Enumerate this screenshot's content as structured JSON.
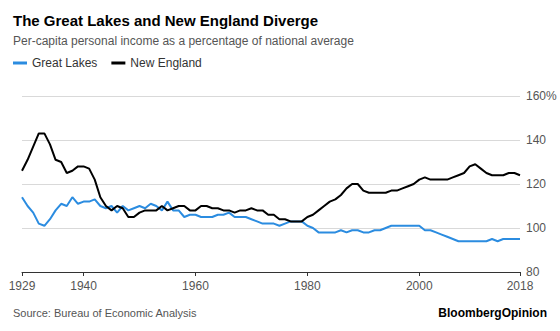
{
  "chart_data": {
    "type": "line",
    "title": "The Great Lakes and New England Diverge",
    "subtitle": "Per-capita personal income as a percentage of national average",
    "source": "Source: Bureau of Economic Analysis",
    "credit": "BloombergOpinion",
    "x": [
      1929,
      1930,
      1931,
      1932,
      1933,
      1934,
      1935,
      1936,
      1937,
      1938,
      1939,
      1940,
      1941,
      1942,
      1943,
      1944,
      1945,
      1946,
      1947,
      1948,
      1949,
      1950,
      1951,
      1952,
      1953,
      1954,
      1955,
      1956,
      1957,
      1958,
      1959,
      1960,
      1961,
      1962,
      1963,
      1964,
      1965,
      1966,
      1967,
      1968,
      1969,
      1970,
      1971,
      1972,
      1973,
      1974,
      1975,
      1976,
      1977,
      1978,
      1979,
      1980,
      1981,
      1982,
      1983,
      1984,
      1985,
      1986,
      1987,
      1988,
      1989,
      1990,
      1991,
      1992,
      1993,
      1994,
      1995,
      1996,
      1997,
      1998,
      1999,
      2000,
      2001,
      2002,
      2003,
      2004,
      2005,
      2006,
      2007,
      2008,
      2009,
      2010,
      2011,
      2012,
      2013,
      2014,
      2015,
      2016,
      2017,
      2018
    ],
    "series": [
      {
        "name": "Great Lakes",
        "color": "#2b8ce0",
        "values": [
          114,
          110,
          107,
          102,
          101,
          104,
          108,
          111,
          110,
          114,
          111,
          112,
          112,
          113,
          110,
          109,
          110,
          107,
          110,
          108,
          109,
          110,
          109,
          111,
          110,
          108,
          112,
          108,
          108,
          105,
          106,
          106,
          105,
          105,
          105,
          106,
          106,
          107,
          105,
          105,
          105,
          104,
          103,
          102,
          102,
          102,
          101,
          102,
          103,
          103,
          103,
          101,
          100,
          98,
          98,
          98,
          98,
          99,
          98,
          99,
          99,
          98,
          98,
          99,
          99,
          100,
          101,
          101,
          101,
          101,
          101,
          101,
          99,
          99,
          98,
          97,
          96,
          95,
          94,
          94,
          94,
          94,
          94,
          94,
          95,
          94,
          95,
          95,
          95,
          95
        ]
      },
      {
        "name": "New England",
        "color": "#000000",
        "values": [
          126,
          131,
          137,
          143,
          143,
          138,
          131,
          130,
          125,
          126,
          128,
          128,
          127,
          122,
          114,
          110,
          108,
          110,
          109,
          105,
          105,
          107,
          108,
          108,
          108,
          110,
          108,
          109,
          110,
          110,
          108,
          108,
          110,
          110,
          109,
          109,
          108,
          108,
          107,
          108,
          108,
          109,
          108,
          108,
          106,
          106,
          104,
          104,
          103,
          103,
          103,
          105,
          106,
          108,
          110,
          112,
          113,
          115,
          118,
          120,
          120,
          117,
          116,
          116,
          116,
          116,
          117,
          117,
          118,
          119,
          120,
          122,
          123,
          122,
          122,
          122,
          122,
          123,
          124,
          125,
          128,
          129,
          127,
          125,
          124,
          124,
          124,
          125,
          125,
          124
        ]
      }
    ],
    "xlim": [
      1929,
      2018
    ],
    "xticks": [
      1929,
      1940,
      1960,
      1980,
      2000,
      2018
    ],
    "ylim": [
      80,
      160
    ],
    "yticks": [
      80,
      100,
      120,
      140,
      {
        "value": 160,
        "label": "160%"
      }
    ],
    "grid": true,
    "legend": "top-left"
  }
}
